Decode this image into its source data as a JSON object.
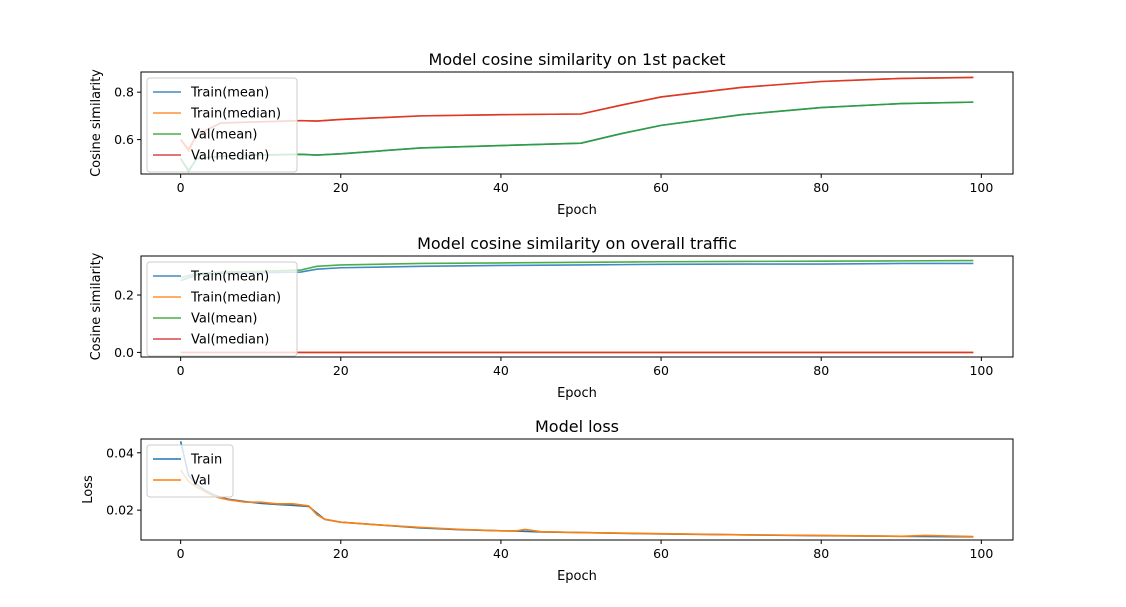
{
  "figure": {
    "charts_note": ""
  },
  "chart_data": [
    {
      "type": "line",
      "title": "Model cosine similarity on 1st packet",
      "xlabel": "Epoch",
      "ylabel": "Cosine similarity",
      "xlim": [
        -4.95,
        103.95
      ],
      "ylim": [
        0.455,
        0.885
      ],
      "xticks": [
        0,
        20,
        40,
        60,
        80,
        100
      ],
      "yticks": [
        0.6,
        0.8
      ],
      "ytick_labels": [
        "0.6",
        "0.8"
      ],
      "legend": "upper-left",
      "grid": false,
      "series": [
        {
          "name": "Train(mean)",
          "color": "#1f77b4",
          "points": [
            [
              0,
              0.52
            ],
            [
              1,
              0.47
            ],
            [
              2,
              0.52
            ],
            [
              5,
              0.53
            ],
            [
              10,
              0.535
            ],
            [
              15,
              0.538
            ],
            [
              17,
              0.535
            ],
            [
              20,
              0.54
            ],
            [
              30,
              0.565
            ],
            [
              40,
              0.575
            ],
            [
              50,
              0.585
            ],
            [
              55,
              0.625
            ],
            [
              60,
              0.66
            ],
            [
              70,
              0.705
            ],
            [
              80,
              0.735
            ],
            [
              90,
              0.752
            ],
            [
              99,
              0.758
            ]
          ]
        },
        {
          "name": "Train(median)",
          "color": "#ff7f0e",
          "points": [
            [
              0,
              0.6
            ],
            [
              1,
              0.55
            ],
            [
              2,
              0.62
            ],
            [
              5,
              0.67
            ],
            [
              10,
              0.675
            ],
            [
              15,
              0.68
            ],
            [
              17,
              0.678
            ],
            [
              20,
              0.685
            ],
            [
              30,
              0.7
            ],
            [
              40,
              0.705
            ],
            [
              50,
              0.708
            ],
            [
              55,
              0.745
            ],
            [
              60,
              0.78
            ],
            [
              70,
              0.82
            ],
            [
              80,
              0.845
            ],
            [
              90,
              0.858
            ],
            [
              99,
              0.862
            ]
          ]
        },
        {
          "name": "Val(mean)",
          "color": "#2ca02c",
          "points": [
            [
              0,
              0.52
            ],
            [
              1,
              0.465
            ],
            [
              2,
              0.52
            ],
            [
              5,
              0.53
            ],
            [
              10,
              0.535
            ],
            [
              15,
              0.538
            ],
            [
              17,
              0.535
            ],
            [
              20,
              0.54
            ],
            [
              30,
              0.565
            ],
            [
              40,
              0.575
            ],
            [
              50,
              0.585
            ],
            [
              55,
              0.625
            ],
            [
              60,
              0.66
            ],
            [
              70,
              0.705
            ],
            [
              80,
              0.735
            ],
            [
              90,
              0.752
            ],
            [
              99,
              0.758
            ]
          ]
        },
        {
          "name": "Val(median)",
          "color": "#d62728",
          "points": [
            [
              0,
              0.6
            ],
            [
              1,
              0.56
            ],
            [
              2,
              0.62
            ],
            [
              5,
              0.67
            ],
            [
              10,
              0.675
            ],
            [
              15,
              0.68
            ],
            [
              17,
              0.678
            ],
            [
              20,
              0.685
            ],
            [
              30,
              0.7
            ],
            [
              40,
              0.705
            ],
            [
              50,
              0.708
            ],
            [
              55,
              0.745
            ],
            [
              60,
              0.78
            ],
            [
              70,
              0.82
            ],
            [
              80,
              0.845
            ],
            [
              90,
              0.858
            ],
            [
              99,
              0.862
            ]
          ]
        }
      ]
    },
    {
      "type": "line",
      "title": "Model cosine similarity on overall traffic",
      "xlabel": "Epoch",
      "ylabel": "Cosine similarity",
      "xlim": [
        -4.95,
        103.95
      ],
      "ylim": [
        -0.016,
        0.336
      ],
      "xticks": [
        0,
        20,
        40,
        60,
        80,
        100
      ],
      "yticks": [
        0.0,
        0.2
      ],
      "ytick_labels": [
        "0.0",
        "0.2"
      ],
      "legend": "upper-left",
      "grid": false,
      "series": [
        {
          "name": "Train(mean)",
          "color": "#1f77b4",
          "points": [
            [
              0,
              0.25
            ],
            [
              2,
              0.27
            ],
            [
              5,
              0.275
            ],
            [
              10,
              0.278
            ],
            [
              15,
              0.28
            ],
            [
              17,
              0.29
            ],
            [
              20,
              0.295
            ],
            [
              30,
              0.3
            ],
            [
              40,
              0.303
            ],
            [
              50,
              0.305
            ],
            [
              60,
              0.307
            ],
            [
              70,
              0.308
            ],
            [
              80,
              0.308
            ],
            [
              90,
              0.31
            ],
            [
              99,
              0.31
            ]
          ]
        },
        {
          "name": "Train(median)",
          "color": "#ff7f0e",
          "points": [
            [
              0,
              0.0
            ],
            [
              99,
              0.0
            ]
          ]
        },
        {
          "name": "Val(mean)",
          "color": "#2ca02c",
          "points": [
            [
              0,
              0.26
            ],
            [
              2,
              0.275
            ],
            [
              5,
              0.28
            ],
            [
              10,
              0.283
            ],
            [
              15,
              0.287
            ],
            [
              17,
              0.3
            ],
            [
              20,
              0.305
            ],
            [
              30,
              0.31
            ],
            [
              40,
              0.312
            ],
            [
              50,
              0.314
            ],
            [
              60,
              0.316
            ],
            [
              70,
              0.317
            ],
            [
              80,
              0.318
            ],
            [
              90,
              0.319
            ],
            [
              99,
              0.32
            ]
          ]
        },
        {
          "name": "Val(median)",
          "color": "#d62728",
          "points": [
            [
              0,
              0.0
            ],
            [
              99,
              0.0
            ]
          ]
        }
      ]
    },
    {
      "type": "line",
      "title": "Model loss",
      "xlabel": "Epoch",
      "ylabel": "Loss",
      "xlim": [
        -4.95,
        103.95
      ],
      "ylim": [
        0.0096,
        0.0448
      ],
      "xticks": [
        0,
        20,
        40,
        60,
        80,
        100
      ],
      "yticks": [
        0.02,
        0.04
      ],
      "ytick_labels": [
        "0.02",
        "0.04"
      ],
      "legend": "upper-left",
      "grid": false,
      "series": [
        {
          "name": "Train",
          "color": "#1f77b4",
          "points": [
            [
              0,
              0.044
            ],
            [
              1,
              0.032
            ],
            [
              2,
              0.029
            ],
            [
              3,
              0.027
            ],
            [
              4,
              0.0255
            ],
            [
              5,
              0.0245
            ],
            [
              6,
              0.0238
            ],
            [
              8,
              0.023
            ],
            [
              10,
              0.0224
            ],
            [
              12,
              0.022
            ],
            [
              14,
              0.0217
            ],
            [
              16,
              0.0213
            ],
            [
              17,
              0.019
            ],
            [
              18,
              0.0168
            ],
            [
              20,
              0.0158
            ],
            [
              25,
              0.0148
            ],
            [
              30,
              0.0138
            ],
            [
              35,
              0.0132
            ],
            [
              40,
              0.0128
            ],
            [
              42,
              0.0127
            ],
            [
              45,
              0.0124
            ],
            [
              50,
              0.0122
            ],
            [
              60,
              0.0117
            ],
            [
              70,
              0.0114
            ],
            [
              80,
              0.0111
            ],
            [
              90,
              0.0109
            ],
            [
              99,
              0.0107
            ]
          ]
        },
        {
          "name": "Val",
          "color": "#ff7f0e",
          "points": [
            [
              0,
              0.034
            ],
            [
              1,
              0.03
            ],
            [
              2,
              0.028
            ],
            [
              3,
              0.0265
            ],
            [
              4,
              0.025
            ],
            [
              5,
              0.0242
            ],
            [
              6,
              0.0236
            ],
            [
              8,
              0.0228
            ],
            [
              10,
              0.0228
            ],
            [
              12,
              0.0222
            ],
            [
              14,
              0.0222
            ],
            [
              16,
              0.0215
            ],
            [
              17,
              0.0185
            ],
            [
              18,
              0.0168
            ],
            [
              20,
              0.0158
            ],
            [
              25,
              0.0148
            ],
            [
              30,
              0.014
            ],
            [
              35,
              0.0133
            ],
            [
              40,
              0.0128
            ],
            [
              42,
              0.0128
            ],
            [
              43,
              0.0133
            ],
            [
              45,
              0.0125
            ],
            [
              50,
              0.0122
            ],
            [
              60,
              0.0118
            ],
            [
              68,
              0.0115
            ],
            [
              70,
              0.0114
            ],
            [
              80,
              0.0112
            ],
            [
              90,
              0.0109
            ],
            [
              93,
              0.0112
            ],
            [
              99,
              0.0108
            ]
          ]
        }
      ]
    }
  ]
}
